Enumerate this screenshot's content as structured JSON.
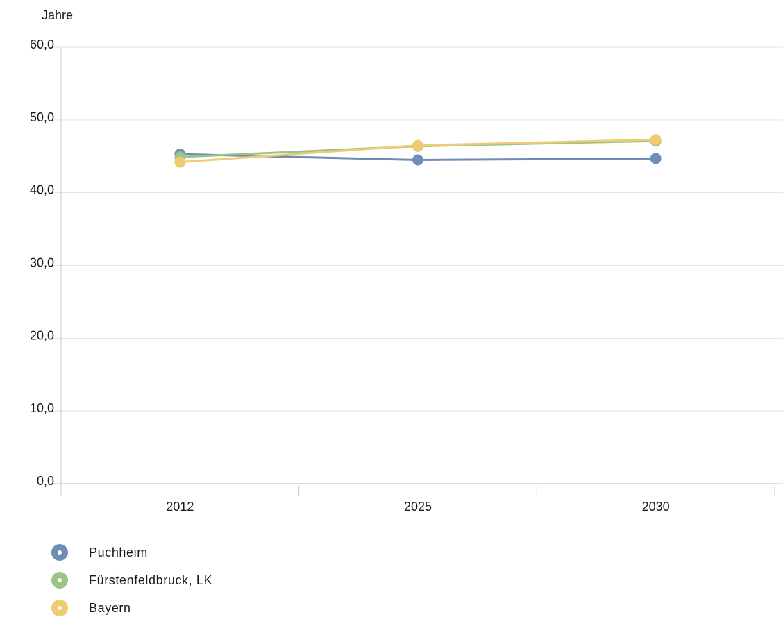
{
  "chart_data": {
    "type": "line",
    "unit_label": "Jahre",
    "categories": [
      "2012",
      "2025",
      "2030"
    ],
    "ylim": [
      0,
      60
    ],
    "yticks": [
      "0,0",
      "10,0",
      "20,0",
      "30,0",
      "40,0",
      "50,0",
      "60,0"
    ],
    "ytick_values": [
      0,
      10,
      20,
      30,
      40,
      50,
      60
    ],
    "grid": true,
    "legend_position": "bottom-left",
    "series": [
      {
        "name": "Puchheim",
        "color": "#6f8db5",
        "values": [
          45.3,
          44.5,
          44.7
        ]
      },
      {
        "name": "Fürstenfeldbruck, LK",
        "color": "#9bc584",
        "values": [
          44.9,
          46.4,
          47.1
        ]
      },
      {
        "name": "Bayern",
        "color": "#f0cb73",
        "values": [
          44.2,
          46.5,
          47.3
        ]
      }
    ]
  }
}
